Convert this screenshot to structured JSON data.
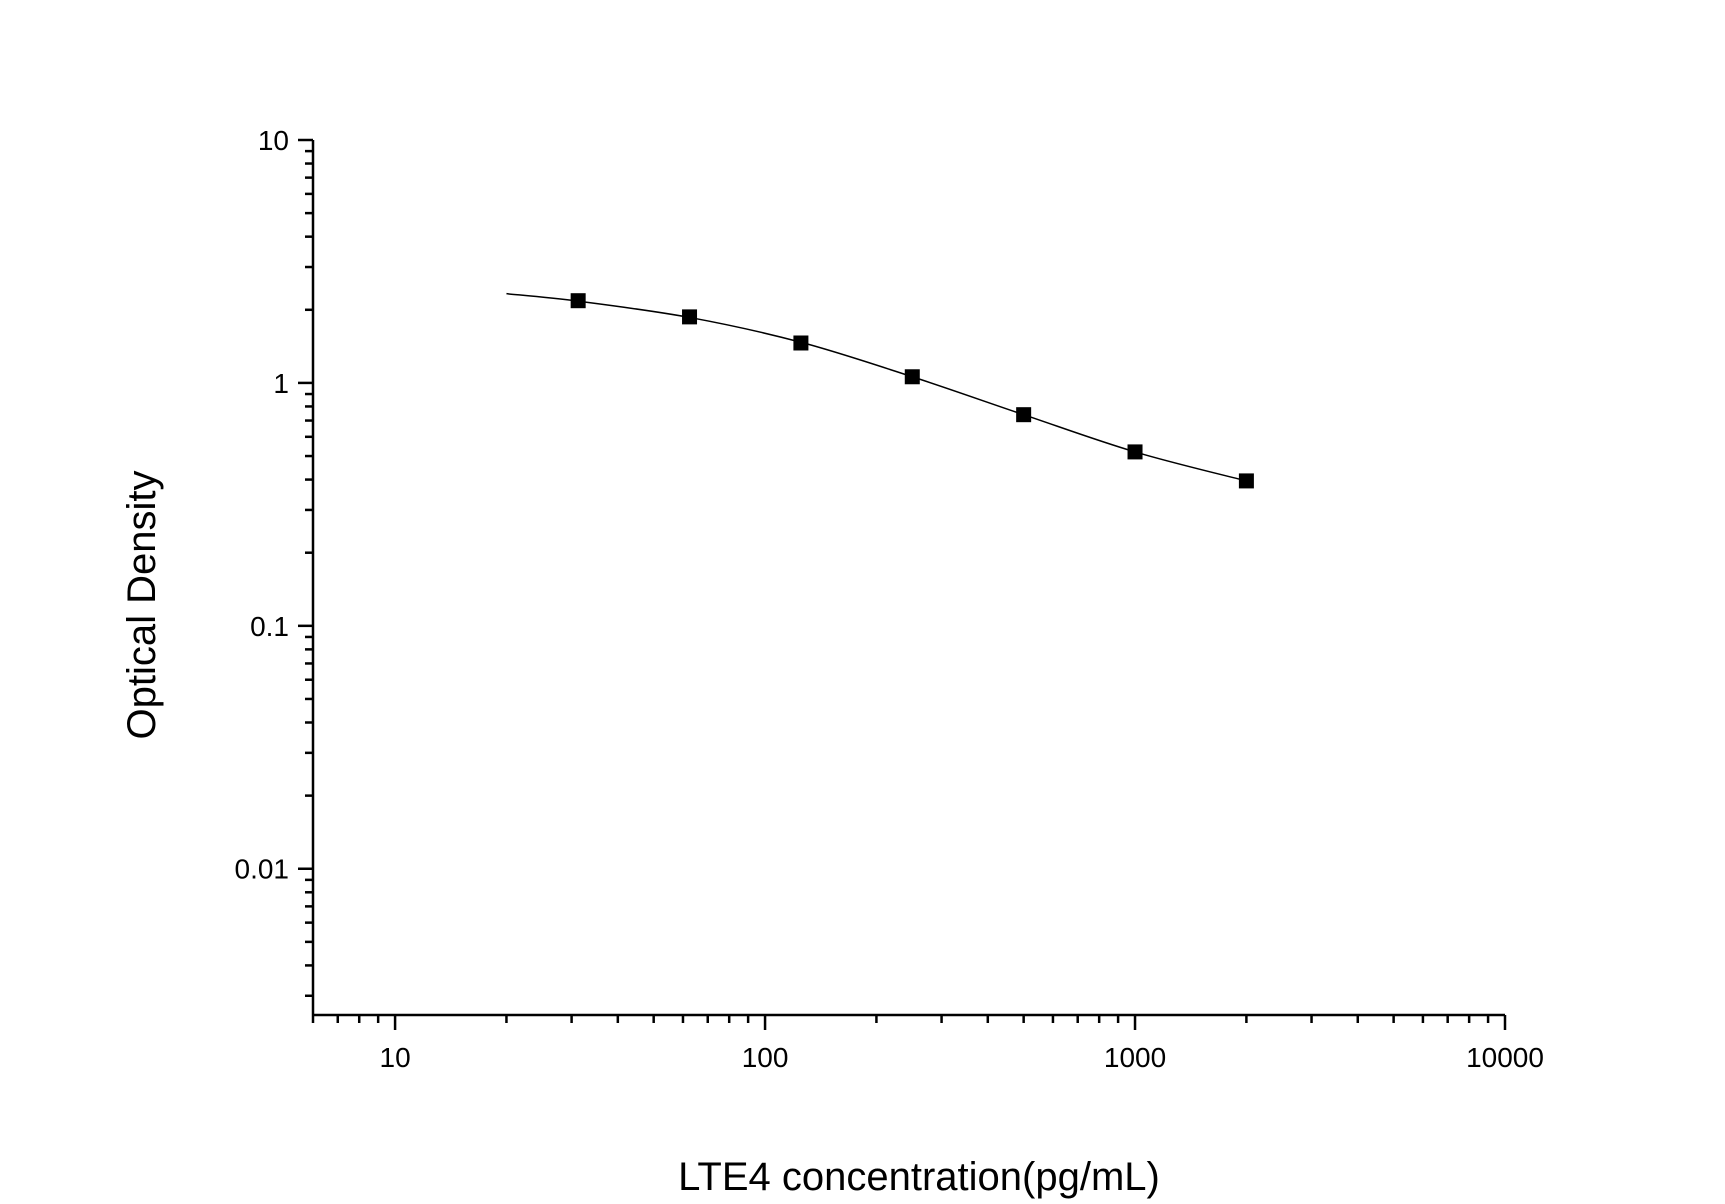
{
  "chart_data": {
    "type": "scatter",
    "xlabel": "LTE4 concentration(pg/mL)",
    "ylabel": "Optical Density",
    "x_scale": "log",
    "y_scale": "log",
    "xlim": [
      6,
      10000
    ],
    "ylim": [
      0.0025,
      10
    ],
    "x_ticks": [
      {
        "value": 10,
        "label": "10"
      },
      {
        "value": 100,
        "label": "100"
      },
      {
        "value": 1000,
        "label": "1000"
      },
      {
        "value": 10000,
        "label": "10000"
      }
    ],
    "y_ticks": [
      {
        "value": 10,
        "label": "10"
      },
      {
        "value": 1,
        "label": "1"
      },
      {
        "value": 0.1,
        "label": "0.1"
      },
      {
        "value": 0.01,
        "label": "0.01"
      }
    ],
    "grid": false,
    "marker": "square",
    "color": "#000000",
    "series": [
      {
        "x": [
          31.25,
          62.5,
          125,
          250,
          500,
          1000,
          2000
        ],
        "y": [
          2.18,
          1.87,
          1.46,
          1.06,
          0.74,
          0.52,
          0.395
        ]
      }
    ],
    "fit_curve": {
      "x": [
        20,
        31.25,
        62.5,
        125,
        250,
        500,
        1000,
        2000
      ],
      "y": [
        2.33,
        2.17,
        1.86,
        1.47,
        1.06,
        0.74,
        0.52,
        0.395
      ]
    }
  }
}
